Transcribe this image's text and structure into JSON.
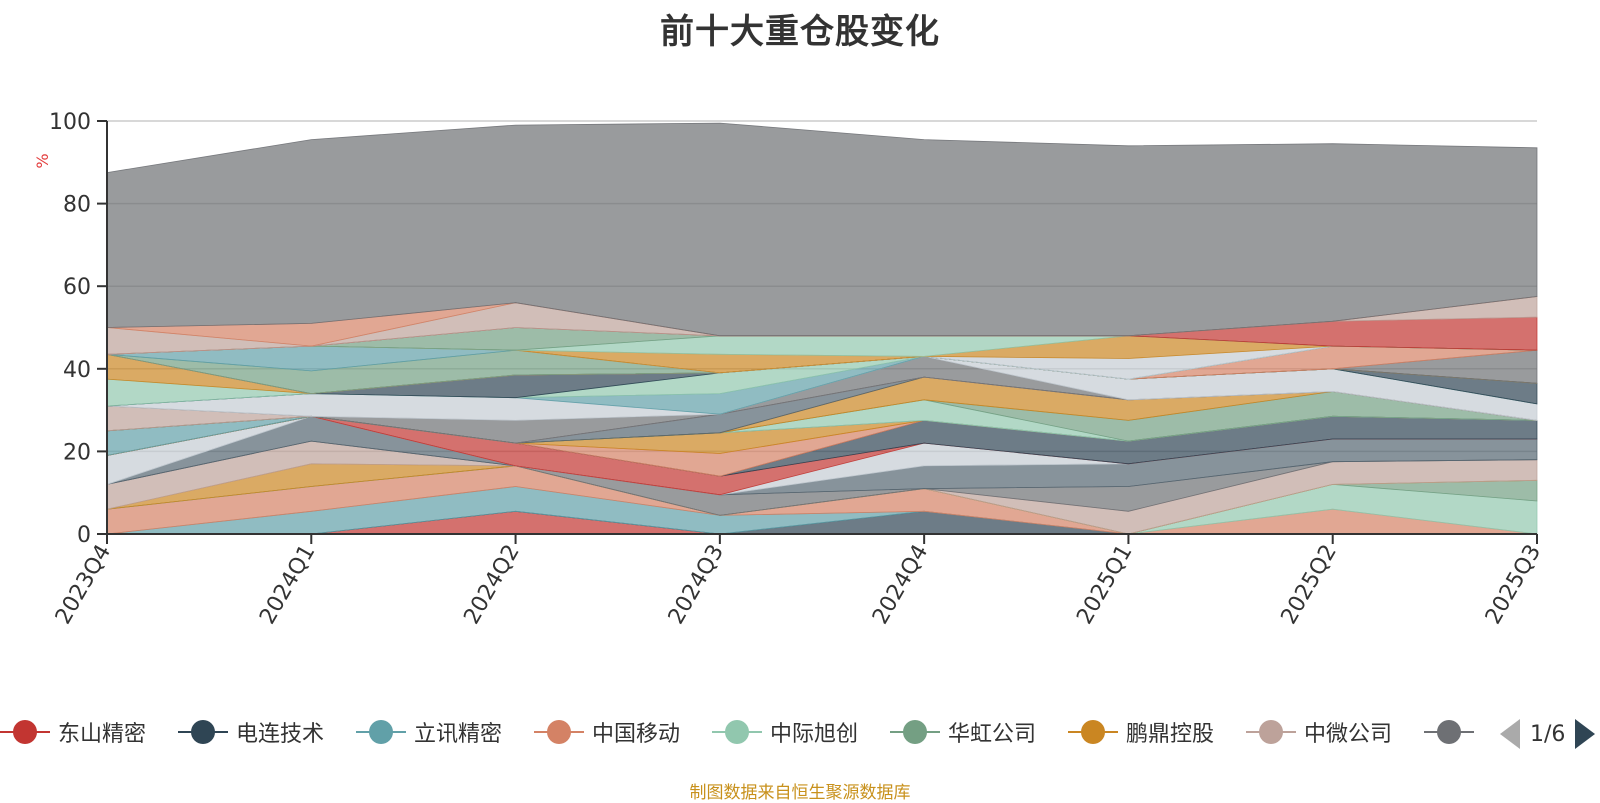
{
  "chart_data": {
    "type": "area",
    "title": "前十大重仓股变化",
    "ylabel": "%",
    "ylim": [
      0,
      100
    ],
    "yticks": [
      0,
      20,
      40,
      60,
      80,
      100
    ],
    "grid": true,
    "stacked": true,
    "x": [
      "2023Q4",
      "2024Q1",
      "2024Q2",
      "2024Q3",
      "2024Q4",
      "2025Q1",
      "2025Q2",
      "2025Q3"
    ],
    "series": [
      {
        "name": "东山精密",
        "color": "#c23531",
        "values": [
          0,
          0,
          5.5,
          0,
          0,
          0,
          0,
          0
        ]
      },
      {
        "name": "电连技术",
        "color": "#2f4554",
        "values": [
          0,
          0,
          0,
          0,
          5.5,
          0,
          0,
          0
        ]
      },
      {
        "name": "立讯精密",
        "color": "#61a0a8",
        "values": [
          0,
          5.5,
          6,
          4.5,
          0,
          0,
          0,
          0
        ]
      },
      {
        "name": "中国移动",
        "color": "#d48265",
        "values": [
          6,
          6,
          5,
          0,
          5.5,
          0,
          6,
          0
        ]
      },
      {
        "name": "中际旭创",
        "color": "#91c7ae",
        "values": [
          0,
          0,
          0,
          0,
          0,
          0,
          6,
          8
        ]
      },
      {
        "name": "华虹公司",
        "color": "#749f83",
        "values": [
          0,
          0,
          0,
          0,
          0,
          0,
          0,
          5
        ]
      },
      {
        "name": "鹏鼎控股",
        "color": "#ca8622",
        "values": [
          0,
          5.5,
          0,
          0,
          0,
          0,
          0,
          0
        ]
      },
      {
        "name": "中微公司",
        "color": "#bda29a",
        "values": [
          6,
          5.5,
          0,
          0,
          0,
          5.5,
          5.5,
          5
        ]
      },
      {
        "name": "",
        "color": "#6e7074",
        "values": [
          0,
          0,
          0,
          5,
          0,
          6,
          0,
          0
        ]
      },
      {
        "name": "",
        "color": "#546570",
        "values": [
          0,
          6,
          0,
          0,
          5.5,
          5.5,
          5.5,
          5
        ]
      },
      {
        "name": "",
        "color": "#c4ccd3",
        "values": [
          7,
          0,
          0,
          0,
          5.5,
          0,
          0,
          0
        ]
      },
      {
        "name": "",
        "color": "#c23531",
        "values": [
          0,
          0,
          5.5,
          4.5,
          0,
          0,
          0,
          0
        ]
      },
      {
        "name": "",
        "color": "#2f4554",
        "values": [
          0,
          0,
          0,
          0,
          5.5,
          5.5,
          5.5,
          4.5
        ]
      },
      {
        "name": "",
        "color": "#d48265",
        "values": [
          0,
          0,
          0,
          5.5,
          0,
          0,
          0,
          0
        ]
      },
      {
        "name": "",
        "color": "#ca8622",
        "values": [
          0,
          0,
          0,
          5,
          0,
          0,
          0,
          0
        ]
      },
      {
        "name": "",
        "color": "#61a0a8",
        "values": [
          6,
          0,
          0,
          0,
          0,
          0,
          0,
          0
        ]
      },
      {
        "name": "",
        "color": "#91c7ae",
        "values": [
          0,
          0,
          0,
          0,
          5,
          0,
          0,
          0
        ]
      },
      {
        "name": "",
        "color": "#749f83",
        "values": [
          0,
          0,
          0,
          0,
          0,
          5,
          6,
          0
        ]
      },
      {
        "name": "",
        "color": "#ca8622",
        "values": [
          0,
          0,
          0,
          0,
          5.5,
          5,
          0,
          0
        ]
      },
      {
        "name": "",
        "color": "#546570",
        "values": [
          0,
          0,
          0,
          4.5,
          0,
          0,
          0,
          0
        ]
      },
      {
        "name": "",
        "color": "#bda29a",
        "values": [
          6,
          0,
          0,
          0,
          0,
          0,
          0,
          0
        ]
      },
      {
        "name": "",
        "color": "#6e7074",
        "values": [
          0,
          0,
          5.5,
          0,
          5,
          0,
          0,
          0
        ]
      },
      {
        "name": "",
        "color": "#c4ccd3",
        "values": [
          0,
          5.5,
          5.5,
          0,
          0,
          5,
          5.5,
          4
        ]
      },
      {
        "name": "",
        "color": "#61a0a8",
        "values": [
          0,
          0,
          0,
          5,
          0,
          0,
          0,
          0
        ]
      },
      {
        "name": "",
        "color": "#91c7ae",
        "values": [
          0,
          0,
          0,
          5,
          0,
          0,
          0,
          0
        ]
      },
      {
        "name": "",
        "color": "#2f4554",
        "values": [
          0,
          0,
          5.5,
          0,
          0,
          0,
          0,
          5
        ]
      },
      {
        "name": "",
        "color": "#91c7ae",
        "values": [
          6.5,
          0,
          0,
          0,
          0,
          0,
          0,
          0
        ]
      },
      {
        "name": "",
        "color": "#ca8622",
        "values": [
          6,
          0,
          0,
          0,
          0,
          0,
          0,
          0
        ]
      },
      {
        "name": "",
        "color": "#6e7074",
        "values": [
          0,
          0,
          0,
          0,
          0,
          0,
          0,
          8
        ]
      },
      {
        "name": "",
        "color": "#d48265",
        "values": [
          0,
          0,
          0,
          0,
          0,
          0,
          5.5,
          0
        ]
      },
      {
        "name": "",
        "color": "#749f83",
        "values": [
          0,
          5.5,
          6,
          0,
          0,
          0,
          0,
          0
        ]
      },
      {
        "name": "",
        "color": "#61a0a8",
        "values": [
          0,
          6,
          0,
          0,
          0,
          0,
          0,
          0
        ]
      },
      {
        "name": "",
        "color": "#c4ccd3",
        "values": [
          0,
          0,
          0,
          0,
          0,
          5,
          0,
          0
        ]
      },
      {
        "name": "",
        "color": "#ca8622",
        "values": [
          0,
          0,
          0,
          4.5,
          0,
          5.5,
          0,
          0
        ]
      },
      {
        "name": "",
        "color": "#91c7ae",
        "values": [
          0,
          0,
          0,
          4.5,
          5,
          0,
          0,
          0
        ]
      },
      {
        "name": "",
        "color": "#749f83",
        "values": [
          0,
          0,
          5.5,
          0,
          0,
          0,
          0,
          0
        ]
      },
      {
        "name": "",
        "color": "#c23531",
        "values": [
          0,
          0,
          0,
          0,
          0,
          0,
          6,
          8
        ]
      },
      {
        "name": "",
        "color": "#bda29a",
        "values": [
          6.5,
          0,
          6,
          0,
          0,
          0,
          0,
          5
        ]
      },
      {
        "name": "",
        "color": "#d48265",
        "values": [
          0,
          5.5,
          0,
          0,
          0,
          0,
          0,
          0
        ]
      },
      {
        "name": "",
        "color": "#6e7074",
        "values": [
          37.5,
          44.5,
          43,
          51.5,
          47.5,
          46,
          43,
          36
        ]
      }
    ]
  },
  "legend": {
    "items": [
      {
        "name": "东山精密",
        "color": "#c23531"
      },
      {
        "name": "电连技术",
        "color": "#2f4554"
      },
      {
        "name": "立讯精密",
        "color": "#61a0a8"
      },
      {
        "name": "中国移动",
        "color": "#d48265"
      },
      {
        "name": "中际旭创",
        "color": "#91c7ae"
      },
      {
        "name": "华虹公司",
        "color": "#749f83"
      },
      {
        "name": "鹏鼎控股",
        "color": "#ca8622"
      },
      {
        "name": "中微公司",
        "color": "#bda29a"
      },
      {
        "name": "",
        "color": "#6e7074"
      }
    ],
    "page_text": "1/6"
  },
  "source_note": "制图数据来自恒生聚源数据库"
}
